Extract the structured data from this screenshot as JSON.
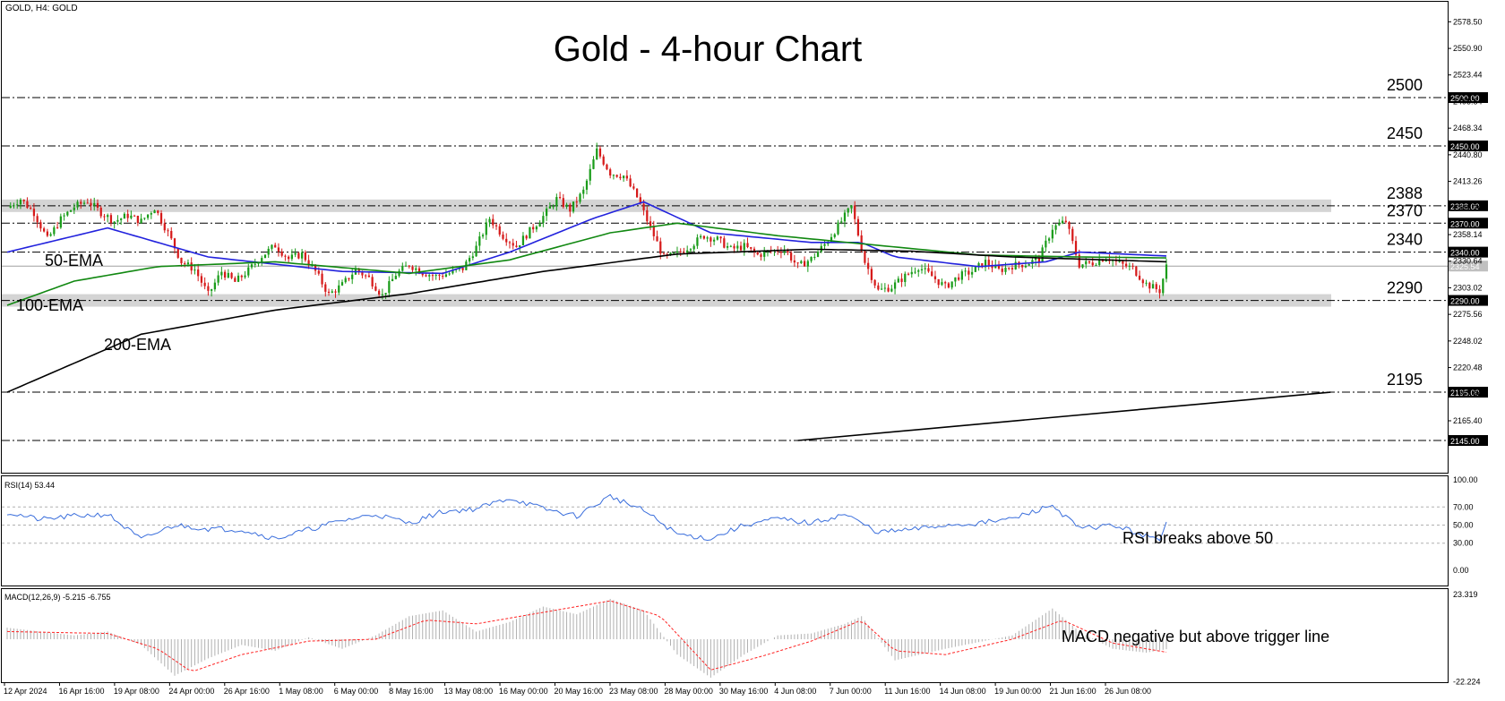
{
  "header": {
    "symbol_label": "GOLD, H4:  GOLD",
    "title": "Gold - 4-hour Chart"
  },
  "chart_data": [
    {
      "type": "candlestick",
      "panel": "price",
      "title": "Gold - 4-hour Chart",
      "ylim": [
        2145,
        2588
      ],
      "y_ticks": [
        "2578.50",
        "2550.90",
        "2523.44",
        "2495.84",
        "2468.34",
        "2440.80",
        "2413.26",
        "2385.76",
        "2358.14",
        "2330.64",
        "2303.02",
        "2275.56",
        "2248.02",
        "2220.48",
        "2192.86",
        "2165.40"
      ],
      "x_ticks": [
        "12 Apr 2024",
        "16 Apr 16:00",
        "19 Apr 08:00",
        "24 Apr 00:00",
        "26 Apr 16:00",
        "1 May 08:00",
        "6 May 00:00",
        "8 May 16:00",
        "13 May 08:00",
        "16 May 00:00",
        "20 May 16:00",
        "23 May 08:00",
        "28 May 00:00",
        "30 May 16:00",
        "4 Jun 08:00",
        "7 Jun 00:00",
        "11 Jun 16:00",
        "14 Jun 08:00",
        "19 Jun 00:00",
        "21 Jun 16:00",
        "26 Jun 08:00"
      ],
      "levels": [
        {
          "value": 2500,
          "label": "2500",
          "tag": "2500.00",
          "zone": false
        },
        {
          "value": 2450,
          "label": "2450",
          "tag": "2450.00",
          "zone": false
        },
        {
          "value": 2388,
          "label": "2388",
          "tag": "2388.00",
          "zone": true
        },
        {
          "value": 2370,
          "label": "2370",
          "tag": "2370.00",
          "zone": false
        },
        {
          "value": 2340,
          "label": "2340",
          "tag": "2340.00",
          "zone": false
        },
        {
          "value": 2290,
          "label": "2290",
          "tag": "2290.00",
          "zone": true
        },
        {
          "value": 2195,
          "label": "2195",
          "tag": "2195.00",
          "zone": false
        },
        {
          "value": 2145,
          "label": "",
          "tag": "2145.00",
          "zone": false
        }
      ],
      "current_price": {
        "value": 2325.54,
        "tag": "2325.54"
      },
      "close_path": [
        [
          0,
          2386
        ],
        [
          4,
          2395
        ],
        [
          8,
          2381
        ],
        [
          12,
          2353
        ],
        [
          16,
          2374
        ],
        [
          20,
          2387
        ],
        [
          24,
          2393
        ],
        [
          28,
          2381
        ],
        [
          32,
          2372
        ],
        [
          36,
          2378
        ],
        [
          40,
          2372
        ],
        [
          44,
          2386
        ],
        [
          48,
          2360
        ],
        [
          52,
          2330
        ],
        [
          56,
          2322
        ],
        [
          60,
          2296
        ],
        [
          64,
          2320
        ],
        [
          68,
          2309
        ],
        [
          72,
          2321
        ],
        [
          76,
          2336
        ],
        [
          80,
          2347
        ],
        [
          84,
          2333
        ],
        [
          88,
          2338
        ],
        [
          92,
          2320
        ],
        [
          96,
          2296
        ],
        [
          100,
          2306
        ],
        [
          104,
          2322
        ],
        [
          108,
          2313
        ],
        [
          112,
          2295
        ],
        [
          116,
          2317
        ],
        [
          120,
          2327
        ],
        [
          124,
          2319
        ],
        [
          128,
          2315
        ],
        [
          132,
          2318
        ],
        [
          136,
          2323
        ],
        [
          140,
          2345
        ],
        [
          144,
          2375
        ],
        [
          148,
          2357
        ],
        [
          152,
          2346
        ],
        [
          156,
          2362
        ],
        [
          160,
          2377
        ],
        [
          164,
          2395
        ],
        [
          168,
          2384
        ],
        [
          172,
          2403
        ],
        [
          176,
          2445
        ],
        [
          180,
          2422
        ],
        [
          184,
          2419
        ],
        [
          188,
          2397
        ],
        [
          192,
          2365
        ],
        [
          196,
          2334
        ],
        [
          200,
          2338
        ],
        [
          204,
          2347
        ],
        [
          208,
          2357
        ],
        [
          212,
          2353
        ],
        [
          216,
          2343
        ],
        [
          220,
          2346
        ],
        [
          224,
          2337
        ],
        [
          228,
          2341
        ],
        [
          232,
          2343
        ],
        [
          236,
          2325
        ],
        [
          240,
          2333
        ],
        [
          244,
          2348
        ],
        [
          248,
          2367
        ],
        [
          252,
          2387
        ],
        [
          256,
          2330
        ],
        [
          260,
          2300
        ],
        [
          264,
          2304
        ],
        [
          268,
          2315
        ],
        [
          272,
          2325
        ],
        [
          276,
          2315
        ],
        [
          280,
          2304
        ],
        [
          284,
          2315
        ],
        [
          288,
          2320
        ],
        [
          292,
          2330
        ],
        [
          296,
          2321
        ],
        [
          300,
          2326
        ],
        [
          304,
          2328
        ],
        [
          308,
          2333
        ],
        [
          312,
          2365
        ],
        [
          316,
          2372
        ],
        [
          320,
          2327
        ],
        [
          324,
          2329
        ],
        [
          328,
          2335
        ],
        [
          332,
          2328
        ],
        [
          336,
          2323
        ],
        [
          340,
          2307
        ],
        [
          344,
          2300
        ],
        [
          346,
          2325
        ]
      ],
      "total_bars": 347,
      "series": [
        {
          "name": "50-EMA",
          "color": "#2222dd",
          "values": [
            [
              0,
              2340
            ],
            [
              30,
              2365
            ],
            [
              60,
              2335
            ],
            [
              100,
              2320
            ],
            [
              130,
              2318
            ],
            [
              150,
              2340
            ],
            [
              175,
              2375
            ],
            [
              190,
              2392
            ],
            [
              210,
              2360
            ],
            [
              240,
              2350
            ],
            [
              255,
              2350
            ],
            [
              265,
              2335
            ],
            [
              290,
              2325
            ],
            [
              310,
              2330
            ],
            [
              320,
              2340
            ],
            [
              346,
              2336
            ]
          ]
        },
        {
          "name": "100-EMA",
          "color": "#118811",
          "values": [
            [
              0,
              2285
            ],
            [
              20,
              2310
            ],
            [
              45,
              2325
            ],
            [
              80,
              2330
            ],
            [
              120,
              2318
            ],
            [
              150,
              2332
            ],
            [
              180,
              2360
            ],
            [
              200,
              2370
            ],
            [
              230,
              2357
            ],
            [
              260,
              2347
            ],
            [
              290,
              2337
            ],
            [
              320,
              2335
            ],
            [
              346,
              2334
            ]
          ]
        },
        {
          "name": "200-EMA",
          "color": "#000000",
          "values": [
            [
              0,
              2195
            ],
            [
              40,
              2255
            ],
            [
              80,
              2280
            ],
            [
              120,
              2297
            ],
            [
              160,
              2320
            ],
            [
              200,
              2338
            ],
            [
              240,
              2343
            ],
            [
              270,
              2341
            ],
            [
              300,
              2335
            ],
            [
              346,
              2330
            ]
          ]
        },
        {
          "name": "",
          "role": "long trendline",
          "color": "#000000",
          "values": [
            [
              236,
              2145
            ],
            [
              395,
              2195
            ]
          ]
        }
      ],
      "annotations": [
        "50-EMA",
        "100-EMA",
        "200-EMA"
      ]
    },
    {
      "type": "line",
      "panel": "rsi",
      "label": "RSI(14) 53.44",
      "ylim": [
        0,
        100
      ],
      "y_ticks": [
        "100.00",
        "70.00",
        "50.00",
        "30.00",
        "0.00"
      ],
      "levels": [
        70,
        50,
        30
      ],
      "series": [
        {
          "name": "RSI(14)",
          "color": "#3a6edc",
          "values": [
            [
              0,
              64
            ],
            [
              10,
              56
            ],
            [
              20,
              60
            ],
            [
              30,
              62
            ],
            [
              40,
              34
            ],
            [
              50,
              50
            ],
            [
              60,
              46
            ],
            [
              70,
              45
            ],
            [
              80,
              35
            ],
            [
              90,
              45
            ],
            [
              100,
              55
            ],
            [
              110,
              62
            ],
            [
              120,
              52
            ],
            [
              130,
              65
            ],
            [
              140,
              68
            ],
            [
              150,
              80
            ],
            [
              160,
              68
            ],
            [
              170,
              60
            ],
            [
              180,
              82
            ],
            [
              190,
              66
            ],
            [
              200,
              40
            ],
            [
              210,
              35
            ],
            [
              220,
              50
            ],
            [
              230,
              57
            ],
            [
              240,
              52
            ],
            [
              250,
              62
            ],
            [
              260,
              42
            ],
            [
              270,
              45
            ],
            [
              280,
              50
            ],
            [
              290,
              52
            ],
            [
              300,
              57
            ],
            [
              312,
              72
            ],
            [
              320,
              46
            ],
            [
              330,
              50
            ],
            [
              340,
              38
            ],
            [
              344,
              32
            ],
            [
              346,
              53.44
            ]
          ]
        }
      ],
      "annotation": "RSI breaks above 50"
    },
    {
      "type": "bar",
      "panel": "macd",
      "label": "MACD(12,26,9) -5.215 -6.755",
      "ylim": [
        -22.224,
        23.319
      ],
      "y_ticks": [
        "23.319",
        "-22.224"
      ],
      "series": [
        {
          "name": "MACD histogram",
          "color": "#b0b0b0",
          "values": [
            [
              0,
              6
            ],
            [
              20,
              2
            ],
            [
              30,
              4
            ],
            [
              40,
              -3
            ],
            [
              50,
              -19
            ],
            [
              60,
              -10
            ],
            [
              70,
              -3
            ],
            [
              80,
              -6
            ],
            [
              90,
              1
            ],
            [
              100,
              -5
            ],
            [
              110,
              2
            ],
            [
              120,
              12
            ],
            [
              130,
              15
            ],
            [
              140,
              4
            ],
            [
              150,
              9
            ],
            [
              160,
              17
            ],
            [
              170,
              13
            ],
            [
              180,
              21
            ],
            [
              190,
              15
            ],
            [
              200,
              -8
            ],
            [
              210,
              -20
            ],
            [
              220,
              -8
            ],
            [
              230,
              2
            ],
            [
              240,
              3
            ],
            [
              250,
              8
            ],
            [
              255,
              12
            ],
            [
              265,
              -11
            ],
            [
              270,
              -9
            ],
            [
              280,
              -5
            ],
            [
              300,
              2
            ],
            [
              312,
              16
            ],
            [
              320,
              4
            ],
            [
              330,
              -5
            ],
            [
              340,
              -7
            ],
            [
              346,
              -5.215
            ]
          ]
        },
        {
          "name": "signal",
          "color": "#ff2222",
          "values": [
            [
              0,
              4
            ],
            [
              30,
              3
            ],
            [
              45,
              -5
            ],
            [
              55,
              -17
            ],
            [
              70,
              -8
            ],
            [
              90,
              -1
            ],
            [
              110,
              0
            ],
            [
              125,
              10
            ],
            [
              140,
              8
            ],
            [
              160,
              14
            ],
            [
              180,
              20
            ],
            [
              195,
              12
            ],
            [
              210,
              -16
            ],
            [
              225,
              -9
            ],
            [
              240,
              -1
            ],
            [
              255,
              10
            ],
            [
              265,
              -6
            ],
            [
              280,
              -8
            ],
            [
              300,
              0
            ],
            [
              315,
              10
            ],
            [
              330,
              -2
            ],
            [
              346,
              -6.755
            ]
          ]
        }
      ],
      "annotation": "MACD negative but above trigger line"
    }
  ]
}
